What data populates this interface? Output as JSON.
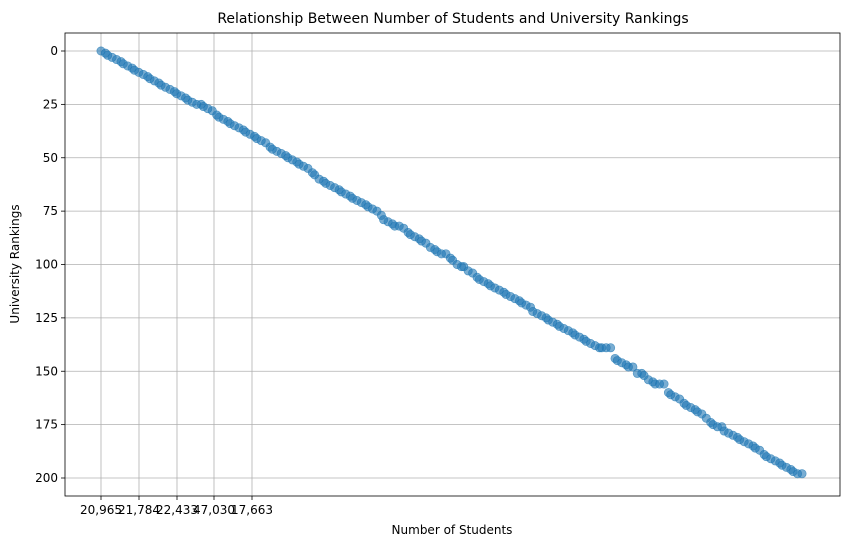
{
  "chart_data": {
    "type": "scatter",
    "title": "Relationship Between Number of Students and University Rankings",
    "xlabel": "Number of Students",
    "ylabel": "University Rankings",
    "x_tick_labels": [
      "20,965",
      "21,784",
      "22,433",
      "47,030",
      "17,663"
    ],
    "y_ticks": [
      0,
      25,
      50,
      75,
      100,
      125,
      150,
      175,
      200
    ],
    "y_inverted": true,
    "ylim": [
      0,
      200
    ],
    "grid": true,
    "marker_color": "#1f77b4",
    "points": [
      {
        "i": 0,
        "rank": 0
      },
      {
        "i": 2,
        "rank": 1
      },
      {
        "i": 3,
        "rank": 2
      },
      {
        "i": 5,
        "rank": 3
      },
      {
        "i": 7,
        "rank": 4
      },
      {
        "i": 9,
        "rank": 5
      },
      {
        "i": 10,
        "rank": 6
      },
      {
        "i": 12,
        "rank": 7
      },
      {
        "i": 14,
        "rank": 8
      },
      {
        "i": 15,
        "rank": 9
      },
      {
        "i": 17,
        "rank": 10
      },
      {
        "i": 19,
        "rank": 11
      },
      {
        "i": 21,
        "rank": 12
      },
      {
        "i": 22,
        "rank": 13
      },
      {
        "i": 24,
        "rank": 14
      },
      {
        "i": 26,
        "rank": 15
      },
      {
        "i": 27,
        "rank": 16
      },
      {
        "i": 29,
        "rank": 17
      },
      {
        "i": 31,
        "rank": 18
      },
      {
        "i": 33,
        "rank": 19
      },
      {
        "i": 34,
        "rank": 20
      },
      {
        "i": 36,
        "rank": 21
      },
      {
        "i": 38,
        "rank": 22
      },
      {
        "i": 39,
        "rank": 23
      },
      {
        "i": 41,
        "rank": 24
      },
      {
        "i": 43,
        "rank": 25
      },
      {
        "i": 45,
        "rank": 25
      },
      {
        "i": 46,
        "rank": 26
      },
      {
        "i": 48,
        "rank": 27
      },
      {
        "i": 50,
        "rank": 28
      },
      {
        "i": 52,
        "rank": 30
      },
      {
        "i": 53,
        "rank": 31
      },
      {
        "i": 55,
        "rank": 32
      },
      {
        "i": 57,
        "rank": 33
      },
      {
        "i": 58,
        "rank": 34
      },
      {
        "i": 60,
        "rank": 35
      },
      {
        "i": 62,
        "rank": 36
      },
      {
        "i": 64,
        "rank": 37
      },
      {
        "i": 65,
        "rank": 38
      },
      {
        "i": 67,
        "rank": 39
      },
      {
        "i": 69,
        "rank": 40
      },
      {
        "i": 70,
        "rank": 41
      },
      {
        "i": 72,
        "rank": 42
      },
      {
        "i": 74,
        "rank": 43
      },
      {
        "i": 76,
        "rank": 45
      },
      {
        "i": 77,
        "rank": 46
      },
      {
        "i": 79,
        "rank": 47
      },
      {
        "i": 81,
        "rank": 48
      },
      {
        "i": 83,
        "rank": 49
      },
      {
        "i": 84,
        "rank": 50
      },
      {
        "i": 86,
        "rank": 51
      },
      {
        "i": 88,
        "rank": 52
      },
      {
        "i": 89,
        "rank": 53
      },
      {
        "i": 91,
        "rank": 54
      },
      {
        "i": 93,
        "rank": 55
      },
      {
        "i": 95,
        "rank": 57
      },
      {
        "i": 96,
        "rank": 58
      },
      {
        "i": 98,
        "rank": 60
      },
      {
        "i": 100,
        "rank": 61
      },
      {
        "i": 101,
        "rank": 62
      },
      {
        "i": 103,
        "rank": 63
      },
      {
        "i": 105,
        "rank": 64
      },
      {
        "i": 107,
        "rank": 65
      },
      {
        "i": 108,
        "rank": 66
      },
      {
        "i": 110,
        "rank": 67
      },
      {
        "i": 112,
        "rank": 68
      },
      {
        "i": 113,
        "rank": 69
      },
      {
        "i": 115,
        "rank": 70
      },
      {
        "i": 117,
        "rank": 71
      },
      {
        "i": 119,
        "rank": 72
      },
      {
        "i": 120,
        "rank": 73
      },
      {
        "i": 122,
        "rank": 74
      },
      {
        "i": 124,
        "rank": 75
      },
      {
        "i": 126,
        "rank": 77
      },
      {
        "i": 127,
        "rank": 79
      },
      {
        "i": 129,
        "rank": 80
      },
      {
        "i": 131,
        "rank": 81
      },
      {
        "i": 132,
        "rank": 82
      },
      {
        "i": 134,
        "rank": 82
      },
      {
        "i": 136,
        "rank": 83
      },
      {
        "i": 138,
        "rank": 85
      },
      {
        "i": 139,
        "rank": 86
      },
      {
        "i": 141,
        "rank": 87
      },
      {
        "i": 143,
        "rank": 88
      },
      {
        "i": 144,
        "rank": 89
      },
      {
        "i": 146,
        "rank": 90
      },
      {
        "i": 148,
        "rank": 92
      },
      {
        "i": 150,
        "rank": 93
      },
      {
        "i": 151,
        "rank": 94
      },
      {
        "i": 153,
        "rank": 95
      },
      {
        "i": 155,
        "rank": 95
      },
      {
        "i": 157,
        "rank": 97
      },
      {
        "i": 158,
        "rank": 98
      },
      {
        "i": 160,
        "rank": 100
      },
      {
        "i": 162,
        "rank": 101
      },
      {
        "i": 163,
        "rank": 101
      },
      {
        "i": 165,
        "rank": 103
      },
      {
        "i": 167,
        "rank": 104
      },
      {
        "i": 169,
        "rank": 106
      },
      {
        "i": 170,
        "rank": 107
      },
      {
        "i": 172,
        "rank": 108
      },
      {
        "i": 174,
        "rank": 109
      },
      {
        "i": 175,
        "rank": 110
      },
      {
        "i": 177,
        "rank": 111
      },
      {
        "i": 179,
        "rank": 112
      },
      {
        "i": 181,
        "rank": 113
      },
      {
        "i": 182,
        "rank": 114
      },
      {
        "i": 184,
        "rank": 115
      },
      {
        "i": 186,
        "rank": 116
      },
      {
        "i": 188,
        "rank": 117
      },
      {
        "i": 189,
        "rank": 118
      },
      {
        "i": 191,
        "rank": 119
      },
      {
        "i": 193,
        "rank": 120
      },
      {
        "i": 194,
        "rank": 122
      },
      {
        "i": 196,
        "rank": 123
      },
      {
        "i": 198,
        "rank": 124
      },
      {
        "i": 200,
        "rank": 125
      },
      {
        "i": 201,
        "rank": 126
      },
      {
        "i": 203,
        "rank": 127
      },
      {
        "i": 205,
        "rank": 128
      },
      {
        "i": 206,
        "rank": 129
      },
      {
        "i": 208,
        "rank": 130
      },
      {
        "i": 210,
        "rank": 131
      },
      {
        "i": 212,
        "rank": 132
      },
      {
        "i": 213,
        "rank": 133
      },
      {
        "i": 215,
        "rank": 134
      },
      {
        "i": 217,
        "rank": 135
      },
      {
        "i": 218,
        "rank": 136
      },
      {
        "i": 220,
        "rank": 137
      },
      {
        "i": 222,
        "rank": 138
      },
      {
        "i": 224,
        "rank": 139
      },
      {
        "i": 225,
        "rank": 139
      },
      {
        "i": 227,
        "rank": 139
      },
      {
        "i": 229,
        "rank": 139
      },
      {
        "i": 231,
        "rank": 144
      },
      {
        "i": 232,
        "rank": 145
      },
      {
        "i": 234,
        "rank": 146
      },
      {
        "i": 236,
        "rank": 147
      },
      {
        "i": 237,
        "rank": 148
      },
      {
        "i": 239,
        "rank": 148
      },
      {
        "i": 241,
        "rank": 151
      },
      {
        "i": 243,
        "rank": 151
      },
      {
        "i": 244,
        "rank": 152
      },
      {
        "i": 246,
        "rank": 154
      },
      {
        "i": 248,
        "rank": 155
      },
      {
        "i": 249,
        "rank": 156
      },
      {
        "i": 251,
        "rank": 156
      },
      {
        "i": 253,
        "rank": 156
      },
      {
        "i": 255,
        "rank": 160
      },
      {
        "i": 256,
        "rank": 161
      },
      {
        "i": 258,
        "rank": 162
      },
      {
        "i": 260,
        "rank": 163
      },
      {
        "i": 262,
        "rank": 165
      },
      {
        "i": 263,
        "rank": 166
      },
      {
        "i": 265,
        "rank": 167
      },
      {
        "i": 267,
        "rank": 168
      },
      {
        "i": 268,
        "rank": 169
      },
      {
        "i": 270,
        "rank": 170
      },
      {
        "i": 272,
        "rank": 172
      },
      {
        "i": 274,
        "rank": 174
      },
      {
        "i": 275,
        "rank": 175
      },
      {
        "i": 277,
        "rank": 176
      },
      {
        "i": 279,
        "rank": 176
      },
      {
        "i": 280,
        "rank": 178
      },
      {
        "i": 282,
        "rank": 179
      },
      {
        "i": 284,
        "rank": 180
      },
      {
        "i": 286,
        "rank": 181
      },
      {
        "i": 287,
        "rank": 182
      },
      {
        "i": 289,
        "rank": 183
      },
      {
        "i": 291,
        "rank": 184
      },
      {
        "i": 293,
        "rank": 185
      },
      {
        "i": 294,
        "rank": 186
      },
      {
        "i": 296,
        "rank": 187
      },
      {
        "i": 298,
        "rank": 189
      },
      {
        "i": 299,
        "rank": 190
      },
      {
        "i": 301,
        "rank": 191
      },
      {
        "i": 303,
        "rank": 192
      },
      {
        "i": 305,
        "rank": 193
      },
      {
        "i": 306,
        "rank": 194
      },
      {
        "i": 308,
        "rank": 195
      },
      {
        "i": 310,
        "rank": 196
      },
      {
        "i": 311,
        "rank": 197
      },
      {
        "i": 313,
        "rank": 198
      },
      {
        "i": 315,
        "rank": 198
      }
    ]
  }
}
